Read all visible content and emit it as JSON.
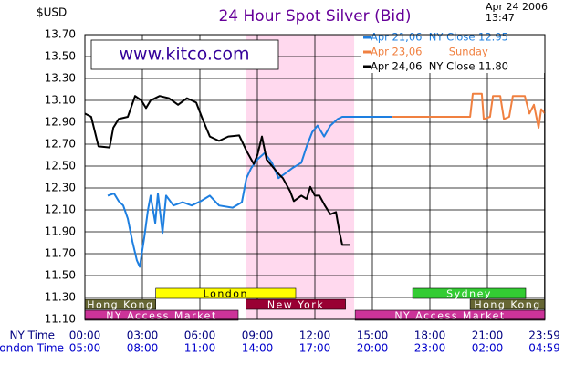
{
  "chart_data": {
    "type": "line",
    "title": "24 Hour Spot Silver (Bid)",
    "y_unit_label": "$USD",
    "date": "Apr 24 2006",
    "time": "13:47",
    "watermark": "www.kitco.com",
    "grid": true,
    "xlim": [
      0,
      24
    ],
    "ylim": [
      11.1,
      13.7
    ],
    "yticks": [
      {
        "value": 11.1,
        "label": "11.10"
      },
      {
        "value": 11.3,
        "label": "11.30"
      },
      {
        "value": 11.5,
        "label": "11.50"
      },
      {
        "value": 11.7,
        "label": "11.70"
      },
      {
        "value": 11.9,
        "label": "11.90"
      },
      {
        "value": 12.1,
        "label": "12.10"
      },
      {
        "value": 12.3,
        "label": "12.30"
      },
      {
        "value": 12.5,
        "label": "12.50"
      },
      {
        "value": 12.7,
        "label": "12.70"
      },
      {
        "value": 12.9,
        "label": "12.90"
      },
      {
        "value": 13.1,
        "label": "13.10"
      },
      {
        "value": 13.3,
        "label": "13.30"
      },
      {
        "value": 13.5,
        "label": "13.50"
      },
      {
        "value": 13.7,
        "label": "13.70"
      }
    ],
    "x_row_labels": [
      "NY Time",
      "London Time"
    ],
    "xticks": [
      {
        "value": 0,
        "label": "00:00"
      },
      {
        "value": 3,
        "label": "03:00"
      },
      {
        "value": 6,
        "label": "06:00"
      },
      {
        "value": 9,
        "label": "09:00"
      },
      {
        "value": 12,
        "label": "12:00"
      },
      {
        "value": 15,
        "label": "15:00"
      },
      {
        "value": 18,
        "label": "18:00"
      },
      {
        "value": 21,
        "label": "21:00"
      },
      {
        "value": 23.98,
        "label": "23:59"
      }
    ],
    "xticks2": [
      {
        "value": 0,
        "label": "05:00"
      },
      {
        "value": 3,
        "label": "08:00"
      },
      {
        "value": 6,
        "label": "11:00"
      },
      {
        "value": 9,
        "label": "14:00"
      },
      {
        "value": 12,
        "label": "17:00"
      },
      {
        "value": 15,
        "label": "20:00"
      },
      {
        "value": 18,
        "label": "23:00"
      },
      {
        "value": 21,
        "label": "02:00"
      },
      {
        "value": 23.98,
        "label": "04:59"
      }
    ],
    "highlight": {
      "start": 8.4,
      "end": 14.05,
      "color": "#ffd9ee"
    },
    "sessions": [
      [
        {
          "label": "London",
          "start": 3.7,
          "end": 11.0,
          "color": "#ffff00",
          "text_color": "#000000"
        },
        {
          "label": "Sydney",
          "start": 17.1,
          "end": 23.0,
          "color": "#33cc33",
          "text_color": "#ffffff"
        }
      ],
      [
        {
          "label": "Hong Kong",
          "start": 0,
          "end": 3.7,
          "color": "#666633",
          "text_color": "#ffffff"
        },
        {
          "label": "New York",
          "start": 8.4,
          "end": 13.6,
          "color": "#990033",
          "text_color": "#ffffff"
        },
        {
          "label": "Hong Kong",
          "start": 20.1,
          "end": 24,
          "color": "#666633",
          "text_color": "#ffffff"
        }
      ],
      [
        {
          "label": "NY Access Market",
          "start": 0,
          "end": 8.0,
          "color": "#cc3399",
          "text_color": "#ffffff"
        },
        {
          "label": "NY Access Market",
          "start": 14.1,
          "end": 24,
          "color": "#cc3399",
          "text_color": "#ffffff"
        }
      ]
    ],
    "series": [
      {
        "name": "Apr 21,06  NY Close 12.95",
        "color": "#1e7fe0",
        "x": [
          1.19,
          1.52,
          1.76,
          2.0,
          2.24,
          2.48,
          2.71,
          2.86,
          3.1,
          3.29,
          3.43,
          3.67,
          3.81,
          4.05,
          4.24,
          4.62,
          5.1,
          5.57,
          6.05,
          6.52,
          7.0,
          7.71,
          8.19,
          8.43,
          8.67,
          9.0,
          9.38,
          9.76,
          10.1,
          10.43,
          10.81,
          11.29,
          11.57,
          11.86,
          12.14,
          12.48,
          12.81,
          13.19,
          13.43,
          16.05
        ],
        "values": [
          12.23,
          12.25,
          12.18,
          12.14,
          12.02,
          11.81,
          11.64,
          11.58,
          11.85,
          12.1,
          12.23,
          11.98,
          12.25,
          11.89,
          12.23,
          12.14,
          12.17,
          12.14,
          12.18,
          12.23,
          12.14,
          12.12,
          12.17,
          12.39,
          12.48,
          12.56,
          12.62,
          12.53,
          12.39,
          12.43,
          12.48,
          12.53,
          12.68,
          12.81,
          12.87,
          12.77,
          12.87,
          12.93,
          12.95,
          12.95
        ]
      },
      {
        "name": "Apr 23,06        Sunday",
        "color": "#f08040",
        "x": [
          16.05,
          20.1,
          20.24,
          20.71,
          20.81,
          21.14,
          21.29,
          21.67,
          21.86,
          22.14,
          22.33,
          22.95,
          23.19,
          23.43,
          23.67,
          23.81,
          24.0
        ],
        "values": [
          12.95,
          12.95,
          13.16,
          13.16,
          12.93,
          12.95,
          13.14,
          13.14,
          12.93,
          12.95,
          13.14,
          13.14,
          12.98,
          13.06,
          12.85,
          13.02,
          12.98
        ]
      },
      {
        "name": "Apr 24,06  NY Close 11.80",
        "color": "#000000",
        "x": [
          0,
          0.33,
          0.71,
          1.29,
          1.48,
          1.76,
          2.24,
          2.62,
          2.95,
          3.19,
          3.43,
          3.9,
          4.38,
          4.86,
          5.33,
          5.81,
          6.14,
          6.52,
          7.0,
          7.48,
          8.05,
          8.43,
          8.81,
          9.0,
          9.24,
          9.48,
          9.86,
          10.1,
          10.33,
          10.71,
          10.9,
          11.29,
          11.57,
          11.76,
          12.0,
          12.24,
          12.52,
          12.81,
          13.1,
          13.29,
          13.43,
          13.81
        ],
        "values": [
          12.98,
          12.95,
          12.68,
          12.67,
          12.85,
          12.93,
          12.95,
          13.14,
          13.1,
          13.03,
          13.1,
          13.14,
          13.12,
          13.06,
          13.12,
          13.08,
          12.93,
          12.77,
          12.73,
          12.77,
          12.78,
          12.64,
          12.52,
          12.6,
          12.77,
          12.56,
          12.48,
          12.43,
          12.39,
          12.27,
          12.18,
          12.23,
          12.2,
          12.31,
          12.23,
          12.23,
          12.14,
          12.06,
          12.08,
          11.89,
          11.78,
          11.78
        ]
      }
    ]
  }
}
